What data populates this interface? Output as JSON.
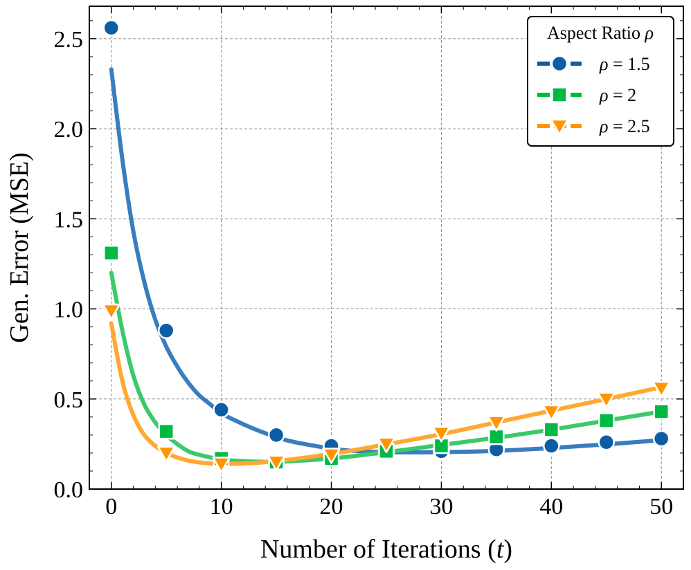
{
  "chart_data": {
    "type": "line",
    "title": "",
    "xlabel": "Number of Iterations (t)",
    "xlabel_prefix": "Number of Iterations (",
    "xlabel_var": "t",
    "xlabel_suffix": ")",
    "ylabel": "Gen. Error (MSE)",
    "xlim": [
      -2,
      52
    ],
    "ylim": [
      0,
      2.68
    ],
    "xticks": [
      0,
      10,
      20,
      30,
      40,
      50
    ],
    "yticks": [
      0.0,
      0.5,
      1.0,
      1.5,
      2.0,
      2.5
    ],
    "xtick_labels": [
      "0",
      "10",
      "20",
      "30",
      "40",
      "50"
    ],
    "ytick_labels": [
      "0.0",
      "0.5",
      "1.0",
      "1.5",
      "2.0",
      "2.5"
    ],
    "grid": true,
    "legend": {
      "title": "Aspect Ratio ρ",
      "title_prefix": "Aspect Ratio ",
      "title_var": "ρ",
      "placement": "top-right"
    },
    "series": [
      {
        "name": "ρ = 1.5",
        "label_var": "ρ",
        "label_value": "= 1.5",
        "color": "#0C5DA5",
        "curve_color": "#3A7DBE",
        "marker": "circle",
        "marker_x": [
          0,
          5,
          10,
          15,
          20,
          25,
          30,
          35,
          40,
          45,
          50
        ],
        "marker_y": [
          2.56,
          0.88,
          0.44,
          0.3,
          0.24,
          0.21,
          0.21,
          0.22,
          0.24,
          0.26,
          0.28
        ],
        "curve_x": [
          0,
          1,
          2,
          3,
          4,
          5,
          6,
          7,
          8,
          9,
          10,
          12,
          14,
          16,
          18,
          20,
          22,
          25,
          30,
          35,
          40,
          45,
          50
        ],
        "curve_y": [
          2.33,
          1.83,
          1.43,
          1.15,
          0.94,
          0.79,
          0.68,
          0.59,
          0.52,
          0.47,
          0.42,
          0.36,
          0.31,
          0.27,
          0.245,
          0.225,
          0.212,
          0.205,
          0.205,
          0.212,
          0.228,
          0.248,
          0.272
        ]
      },
      {
        "name": "ρ = 2",
        "label_var": "ρ",
        "label_value": "= 2",
        "color": "#00B945",
        "curve_color": "#3CC96A",
        "marker": "square",
        "marker_x": [
          0,
          5,
          10,
          15,
          20,
          25,
          30,
          35,
          40,
          45,
          50
        ],
        "marker_y": [
          1.31,
          0.32,
          0.17,
          0.15,
          0.17,
          0.21,
          0.24,
          0.29,
          0.33,
          0.38,
          0.43
        ],
        "curve_x": [
          0,
          1,
          2,
          3,
          4,
          5,
          6,
          7,
          8,
          10,
          12,
          15,
          20,
          25,
          30,
          35,
          40,
          45,
          50
        ],
        "curve_y": [
          1.2,
          0.88,
          0.63,
          0.47,
          0.37,
          0.3,
          0.25,
          0.21,
          0.19,
          0.165,
          0.155,
          0.152,
          0.17,
          0.205,
          0.245,
          0.285,
          0.33,
          0.38,
          0.43
        ]
      },
      {
        "name": "ρ = 2.5",
        "label_var": "ρ",
        "label_value": "= 2.5",
        "color": "#FF9500",
        "curve_color": "#FFA832",
        "marker": "triangle-down",
        "marker_x": [
          0,
          5,
          10,
          15,
          20,
          25,
          30,
          35,
          40,
          45,
          50
        ],
        "marker_y": [
          0.99,
          0.2,
          0.14,
          0.15,
          0.19,
          0.25,
          0.31,
          0.37,
          0.43,
          0.5,
          0.56
        ],
        "curve_x": [
          0,
          1,
          2,
          3,
          4,
          5,
          6,
          7,
          8,
          9,
          10,
          12,
          15,
          20,
          25,
          30,
          35,
          40,
          45,
          50
        ],
        "curve_y": [
          0.92,
          0.6,
          0.41,
          0.3,
          0.24,
          0.2,
          0.175,
          0.158,
          0.148,
          0.142,
          0.14,
          0.142,
          0.155,
          0.195,
          0.248,
          0.305,
          0.37,
          0.435,
          0.5,
          0.565
        ]
      }
    ]
  }
}
